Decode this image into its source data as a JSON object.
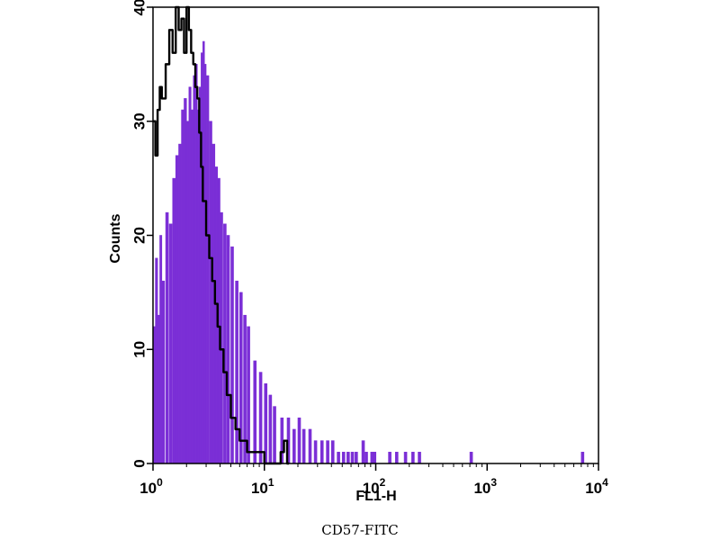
{
  "chart_data": {
    "type": "histogram",
    "xlabel": "FL1-H",
    "ylabel": "Counts",
    "caption": "CD57-FITC",
    "x_scale": "log",
    "xlim": [
      1,
      10000
    ],
    "ylim": [
      0,
      40
    ],
    "x_ticks": [
      {
        "value": 1,
        "base": "10",
        "exp": "0"
      },
      {
        "value": 10,
        "base": "10",
        "exp": "1"
      },
      {
        "value": 100,
        "base": "10",
        "exp": "2"
      },
      {
        "value": 1000,
        "base": "10",
        "exp": "3"
      },
      {
        "value": 10000,
        "base": "10",
        "exp": "4"
      }
    ],
    "y_ticks": [
      0,
      10,
      20,
      30,
      40
    ],
    "series": [
      {
        "style": "filled",
        "color": "#7b2fd6",
        "points": [
          [
            1.0,
            12
          ],
          [
            1.05,
            18
          ],
          [
            1.1,
            13
          ],
          [
            1.15,
            20
          ],
          [
            1.2,
            16
          ],
          [
            1.3,
            22
          ],
          [
            1.4,
            21
          ],
          [
            1.5,
            25
          ],
          [
            1.6,
            27
          ],
          [
            1.7,
            28
          ],
          [
            1.8,
            31
          ],
          [
            1.9,
            32
          ],
          [
            2.0,
            30
          ],
          [
            2.1,
            33
          ],
          [
            2.2,
            31
          ],
          [
            2.3,
            34
          ],
          [
            2.4,
            35
          ],
          [
            2.5,
            31
          ],
          [
            2.6,
            33
          ],
          [
            2.7,
            36
          ],
          [
            2.8,
            37
          ],
          [
            2.9,
            35
          ],
          [
            3.0,
            34
          ],
          [
            3.2,
            30
          ],
          [
            3.4,
            28
          ],
          [
            3.6,
            26
          ],
          [
            3.8,
            25
          ],
          [
            4.0,
            22
          ],
          [
            4.3,
            21
          ],
          [
            4.6,
            20
          ],
          [
            5.0,
            19
          ],
          [
            5.5,
            16
          ],
          [
            6.0,
            15
          ],
          [
            6.5,
            13
          ],
          [
            7.0,
            12
          ],
          [
            8.0,
            9
          ],
          [
            9.0,
            8
          ],
          [
            10.0,
            7
          ],
          [
            11.0,
            6
          ],
          [
            12.0,
            5
          ],
          [
            14.0,
            4
          ],
          [
            16.0,
            4
          ],
          [
            18.0,
            3
          ],
          [
            20.0,
            4
          ],
          [
            22.0,
            3
          ],
          [
            25.0,
            3
          ],
          [
            28.0,
            2
          ],
          [
            32.0,
            2
          ],
          [
            36.0,
            2
          ],
          [
            40.0,
            2
          ],
          [
            45.0,
            1
          ],
          [
            50.0,
            1
          ],
          [
            55.0,
            1
          ],
          [
            60.0,
            1
          ],
          [
            65.0,
            1
          ],
          [
            75.0,
            2
          ],
          [
            80.0,
            1
          ],
          [
            90.0,
            1
          ],
          [
            95.0,
            1
          ],
          [
            130.0,
            1
          ],
          [
            150.0,
            1
          ],
          [
            180.0,
            1
          ],
          [
            210.0,
            1
          ],
          [
            240.0,
            1
          ],
          [
            700.0,
            1
          ],
          [
            7000.0,
            1
          ]
        ]
      },
      {
        "style": "outline",
        "color": "#000000",
        "points": [
          [
            1.0,
            30
          ],
          [
            1.05,
            27
          ],
          [
            1.1,
            31
          ],
          [
            1.15,
            33
          ],
          [
            1.2,
            32
          ],
          [
            1.3,
            35
          ],
          [
            1.4,
            38
          ],
          [
            1.5,
            36
          ],
          [
            1.6,
            40
          ],
          [
            1.7,
            38
          ],
          [
            1.8,
            39
          ],
          [
            1.9,
            36
          ],
          [
            2.0,
            40
          ],
          [
            2.1,
            38
          ],
          [
            2.2,
            36
          ],
          [
            2.3,
            35
          ],
          [
            2.4,
            33
          ],
          [
            2.5,
            32
          ],
          [
            2.6,
            29
          ],
          [
            2.7,
            26
          ],
          [
            2.8,
            23
          ],
          [
            3.0,
            20
          ],
          [
            3.2,
            18
          ],
          [
            3.4,
            16
          ],
          [
            3.6,
            14
          ],
          [
            3.8,
            12
          ],
          [
            4.0,
            10
          ],
          [
            4.3,
            8
          ],
          [
            4.6,
            6
          ],
          [
            5.0,
            4
          ],
          [
            5.5,
            3
          ],
          [
            6.0,
            2
          ],
          [
            7.0,
            1
          ],
          [
            8.0,
            1
          ],
          [
            10.0,
            0
          ],
          [
            14.0,
            1
          ],
          [
            15.0,
            2
          ],
          [
            16.0,
            0
          ]
        ]
      }
    ]
  }
}
